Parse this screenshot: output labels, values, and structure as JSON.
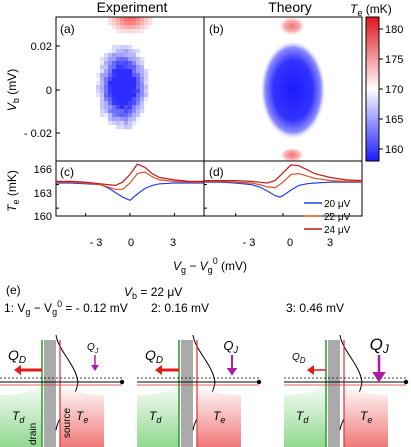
{
  "figure": {
    "top": {
      "title_left": "Experiment",
      "title_right": "Theory",
      "panel_a": "(a)",
      "panel_b": "(b)",
      "ylabel_main": "V",
      "ylabel_sub": "b",
      "ylabel_unit": " (mV)",
      "yticks": [
        "0.02",
        "0",
        "- 0.02"
      ],
      "colorbar": {
        "label_main": "T",
        "label_sub": "e",
        "label_unit": " (mK)",
        "ticks": [
          "180",
          "175",
          "170",
          "165",
          "160"
        ],
        "range_mK": [
          158,
          182
        ],
        "colors": [
          "#1a1aff",
          "#ffffff",
          "#e0141e"
        ]
      }
    },
    "mid": {
      "panel_c": "(c)",
      "panel_d": "(d)",
      "ylabel_main": "T",
      "ylabel_sub": "e",
      "ylabel_unit": " (mK)",
      "yticks": [
        "166",
        "163",
        "160"
      ],
      "xticks": [
        "- 3",
        "0",
        "3"
      ],
      "xlabel_v": "V",
      "xlabel_g": "g",
      "xlabel_minus": " − V",
      "xlabel_g0": "g",
      "xlabel_0": "0",
      "xlabel_unit": " (mV)",
      "legend": [
        {
          "label": "20 μV",
          "color": "#2241e0"
        },
        {
          "label": "22 μV",
          "color": "#d9502a"
        },
        {
          "label": "24 μV",
          "color": "#c21a1a"
        }
      ]
    },
    "bottom": {
      "panel_e": "(e)",
      "vb_text": "V",
      "vb_sub": "b",
      "vb_value": " = 22 μV",
      "case1_prefix": "1: V",
      "case1_sub": "g",
      "case1_mid": " − V",
      "case1_sub2": "g",
      "case1_sup": "0",
      "case1_value": " = - 0.12 mV",
      "case2": "2: 0.16 mV",
      "case3": "3: 0.46 mV",
      "qd_main": "Q",
      "qd_sub": "D",
      "qj_main": "Q",
      "qj_sub": "J",
      "td_main": "T",
      "td_sub": "d",
      "te_main": "T",
      "te_sub": "e",
      "drain_label": "drain",
      "source_label": "source"
    }
  },
  "chart_data": [
    {
      "type": "heatmap",
      "panel": "(a)",
      "title": "Experiment",
      "x_range": [
        -5,
        5
      ],
      "y_range": [
        -0.035,
        0.035
      ],
      "z_range": [
        158,
        182
      ],
      "features": [
        {
          "kind": "cold-lobe",
          "center": [
            -0.5,
            0.0
          ],
          "value_mK": 159
        },
        {
          "kind": "hot-spot",
          "center": [
            0.0,
            0.033
          ],
          "value_mK": 175
        }
      ]
    },
    {
      "type": "heatmap",
      "panel": "(b)",
      "title": "Theory",
      "x_range": [
        -5,
        5
      ],
      "y_range": [
        -0.035,
        0.035
      ],
      "z_range": [
        158,
        182
      ],
      "features": [
        {
          "kind": "cold-lobe",
          "center": [
            0.0,
            0.0
          ],
          "value_mK": 159
        },
        {
          "kind": "hot-spot",
          "center": [
            0.0,
            0.034
          ],
          "value_mK": 172
        },
        {
          "kind": "hot-spot",
          "center": [
            0.0,
            -0.034
          ],
          "value_mK": 170
        }
      ]
    },
    {
      "type": "line",
      "panel": "(c)",
      "xlim": [
        -5,
        5
      ],
      "ylim": [
        159,
        166
      ],
      "series": [
        {
          "name": "20 μV",
          "x": [
            -5,
            -4,
            -3,
            -2,
            -1.5,
            -1,
            -0.5,
            0,
            0.5,
            1,
            1.5,
            2,
            3,
            4,
            5
          ],
          "y": [
            163.2,
            163.2,
            163.1,
            163.0,
            162.6,
            162.0,
            161.4,
            161.0,
            161.8,
            162.5,
            162.9,
            163.1,
            163.2,
            163.2,
            163.2
          ]
        },
        {
          "name": "22 μV",
          "x": [
            -5,
            -4,
            -3,
            -2,
            -1.5,
            -1,
            -0.5,
            0,
            0.5,
            1,
            1.5,
            2,
            3,
            4,
            5
          ],
          "y": [
            163.3,
            163.3,
            163.2,
            163.0,
            162.7,
            162.4,
            162.4,
            163.2,
            164.4,
            164.6,
            164.0,
            163.6,
            163.4,
            163.3,
            163.3
          ]
        },
        {
          "name": "24 μV",
          "x": [
            -5,
            -4,
            -3,
            -2,
            -1.5,
            -1,
            -0.5,
            0,
            0.5,
            1,
            1.5,
            2,
            3,
            4,
            5
          ],
          "y": [
            163.4,
            163.4,
            163.3,
            163.1,
            163.0,
            162.9,
            163.3,
            164.3,
            165.6,
            165.2,
            164.4,
            163.9,
            163.6,
            163.4,
            163.4
          ]
        }
      ]
    },
    {
      "type": "line",
      "panel": "(d)",
      "xlim": [
        -5,
        5
      ],
      "ylim": [
        159,
        166
      ],
      "series": [
        {
          "name": "20 μV",
          "x": [
            -5,
            -4,
            -3,
            -2,
            -1.5,
            -1,
            -0.5,
            -0.2,
            0,
            0.5,
            1,
            1.5,
            2,
            3,
            4,
            5
          ],
          "y": [
            163.3,
            163.3,
            163.2,
            163.0,
            162.7,
            162.2,
            161.6,
            161.4,
            161.6,
            162.3,
            162.9,
            163.1,
            163.2,
            163.3,
            163.3,
            163.3
          ]
        },
        {
          "name": "22 μV",
          "x": [
            -5,
            -4,
            -3,
            -2,
            -1.5,
            -1,
            -0.5,
            0,
            0.5,
            1,
            1.5,
            2,
            3,
            4,
            5
          ],
          "y": [
            163.4,
            163.4,
            163.3,
            163.2,
            163.0,
            162.7,
            162.6,
            163.3,
            164.3,
            164.4,
            164.1,
            163.8,
            163.5,
            163.4,
            163.4
          ]
        },
        {
          "name": "24 μV",
          "x": [
            -5,
            -4,
            -3,
            -2,
            -1.5,
            -1,
            -0.5,
            0,
            0.5,
            1,
            1.5,
            2,
            3,
            4,
            5
          ],
          "y": [
            163.5,
            163.5,
            163.5,
            163.4,
            163.3,
            163.2,
            163.5,
            164.5,
            165.5,
            165.4,
            164.9,
            164.4,
            163.9,
            163.6,
            163.5
          ]
        }
      ]
    }
  ]
}
